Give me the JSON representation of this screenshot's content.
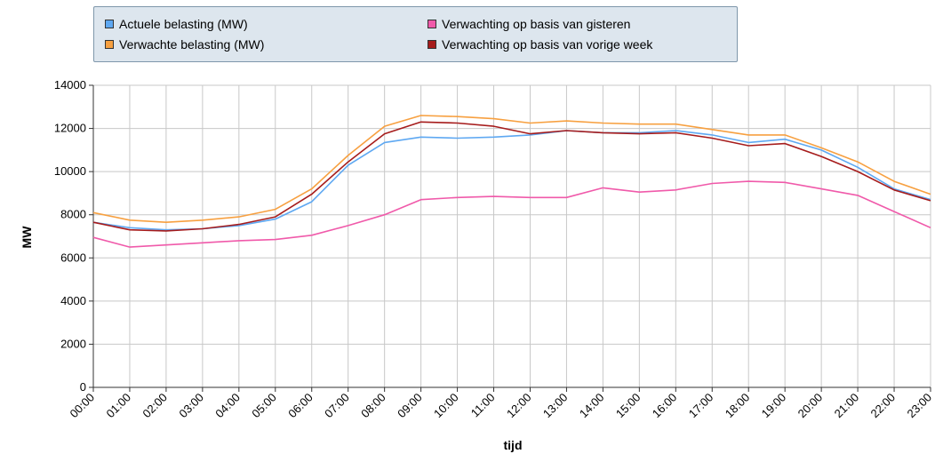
{
  "chart_data": {
    "type": "line",
    "xlabel": "tijd",
    "ylabel": "MW",
    "ylim": [
      0,
      14000
    ],
    "yticks": [
      0,
      2000,
      4000,
      6000,
      8000,
      10000,
      12000,
      14000
    ],
    "grid": true,
    "legend_position": "top",
    "categories": [
      "00:00",
      "01:00",
      "02:00",
      "03:00",
      "04:00",
      "05:00",
      "06:00",
      "07:00",
      "08:00",
      "09:00",
      "10:00",
      "11:00",
      "12:00",
      "13:00",
      "14:00",
      "15:00",
      "16:00",
      "17:00",
      "18:00",
      "19:00",
      "20:00",
      "21:00",
      "22:00",
      "23:00"
    ],
    "series": [
      {
        "name": "Actuele belasting (MW)",
        "color": "#5ea8f2",
        "values": [
          7650,
          7400,
          7300,
          7350,
          7500,
          7800,
          8600,
          10300,
          11350,
          11600,
          11550,
          11600,
          11700,
          11900,
          11800,
          11800,
          11900,
          11700,
          11350,
          11500,
          11000,
          10200,
          9200,
          8700
        ]
      },
      {
        "name": "Verwachte belasting (MW)",
        "color": "#f7a040",
        "values": [
          8100,
          7750,
          7650,
          7750,
          7900,
          8250,
          9200,
          10750,
          12100,
          12600,
          12550,
          12450,
          12250,
          12350,
          12250,
          12200,
          12200,
          11950,
          11700,
          11700,
          11100,
          10450,
          9550,
          8950
        ]
      },
      {
        "name": "Verwachting op basis van gisteren",
        "color": "#f05aaa",
        "values": [
          6950,
          6500,
          6600,
          6700,
          6800,
          6850,
          7050,
          7500,
          8000,
          8700,
          8800,
          8850,
          8800,
          8800,
          9250,
          9050,
          9150,
          9450,
          9550,
          9500,
          9200,
          8900,
          8150,
          7400
        ]
      },
      {
        "name": "Verwachting op basis van vorige week",
        "color": "#a61c1c",
        "values": [
          7650,
          7300,
          7250,
          7350,
          7550,
          7900,
          8950,
          10450,
          11750,
          12300,
          12250,
          12100,
          11750,
          11900,
          11800,
          11750,
          11800,
          11550,
          11200,
          11300,
          10700,
          10000,
          9150,
          8650
        ]
      }
    ]
  }
}
